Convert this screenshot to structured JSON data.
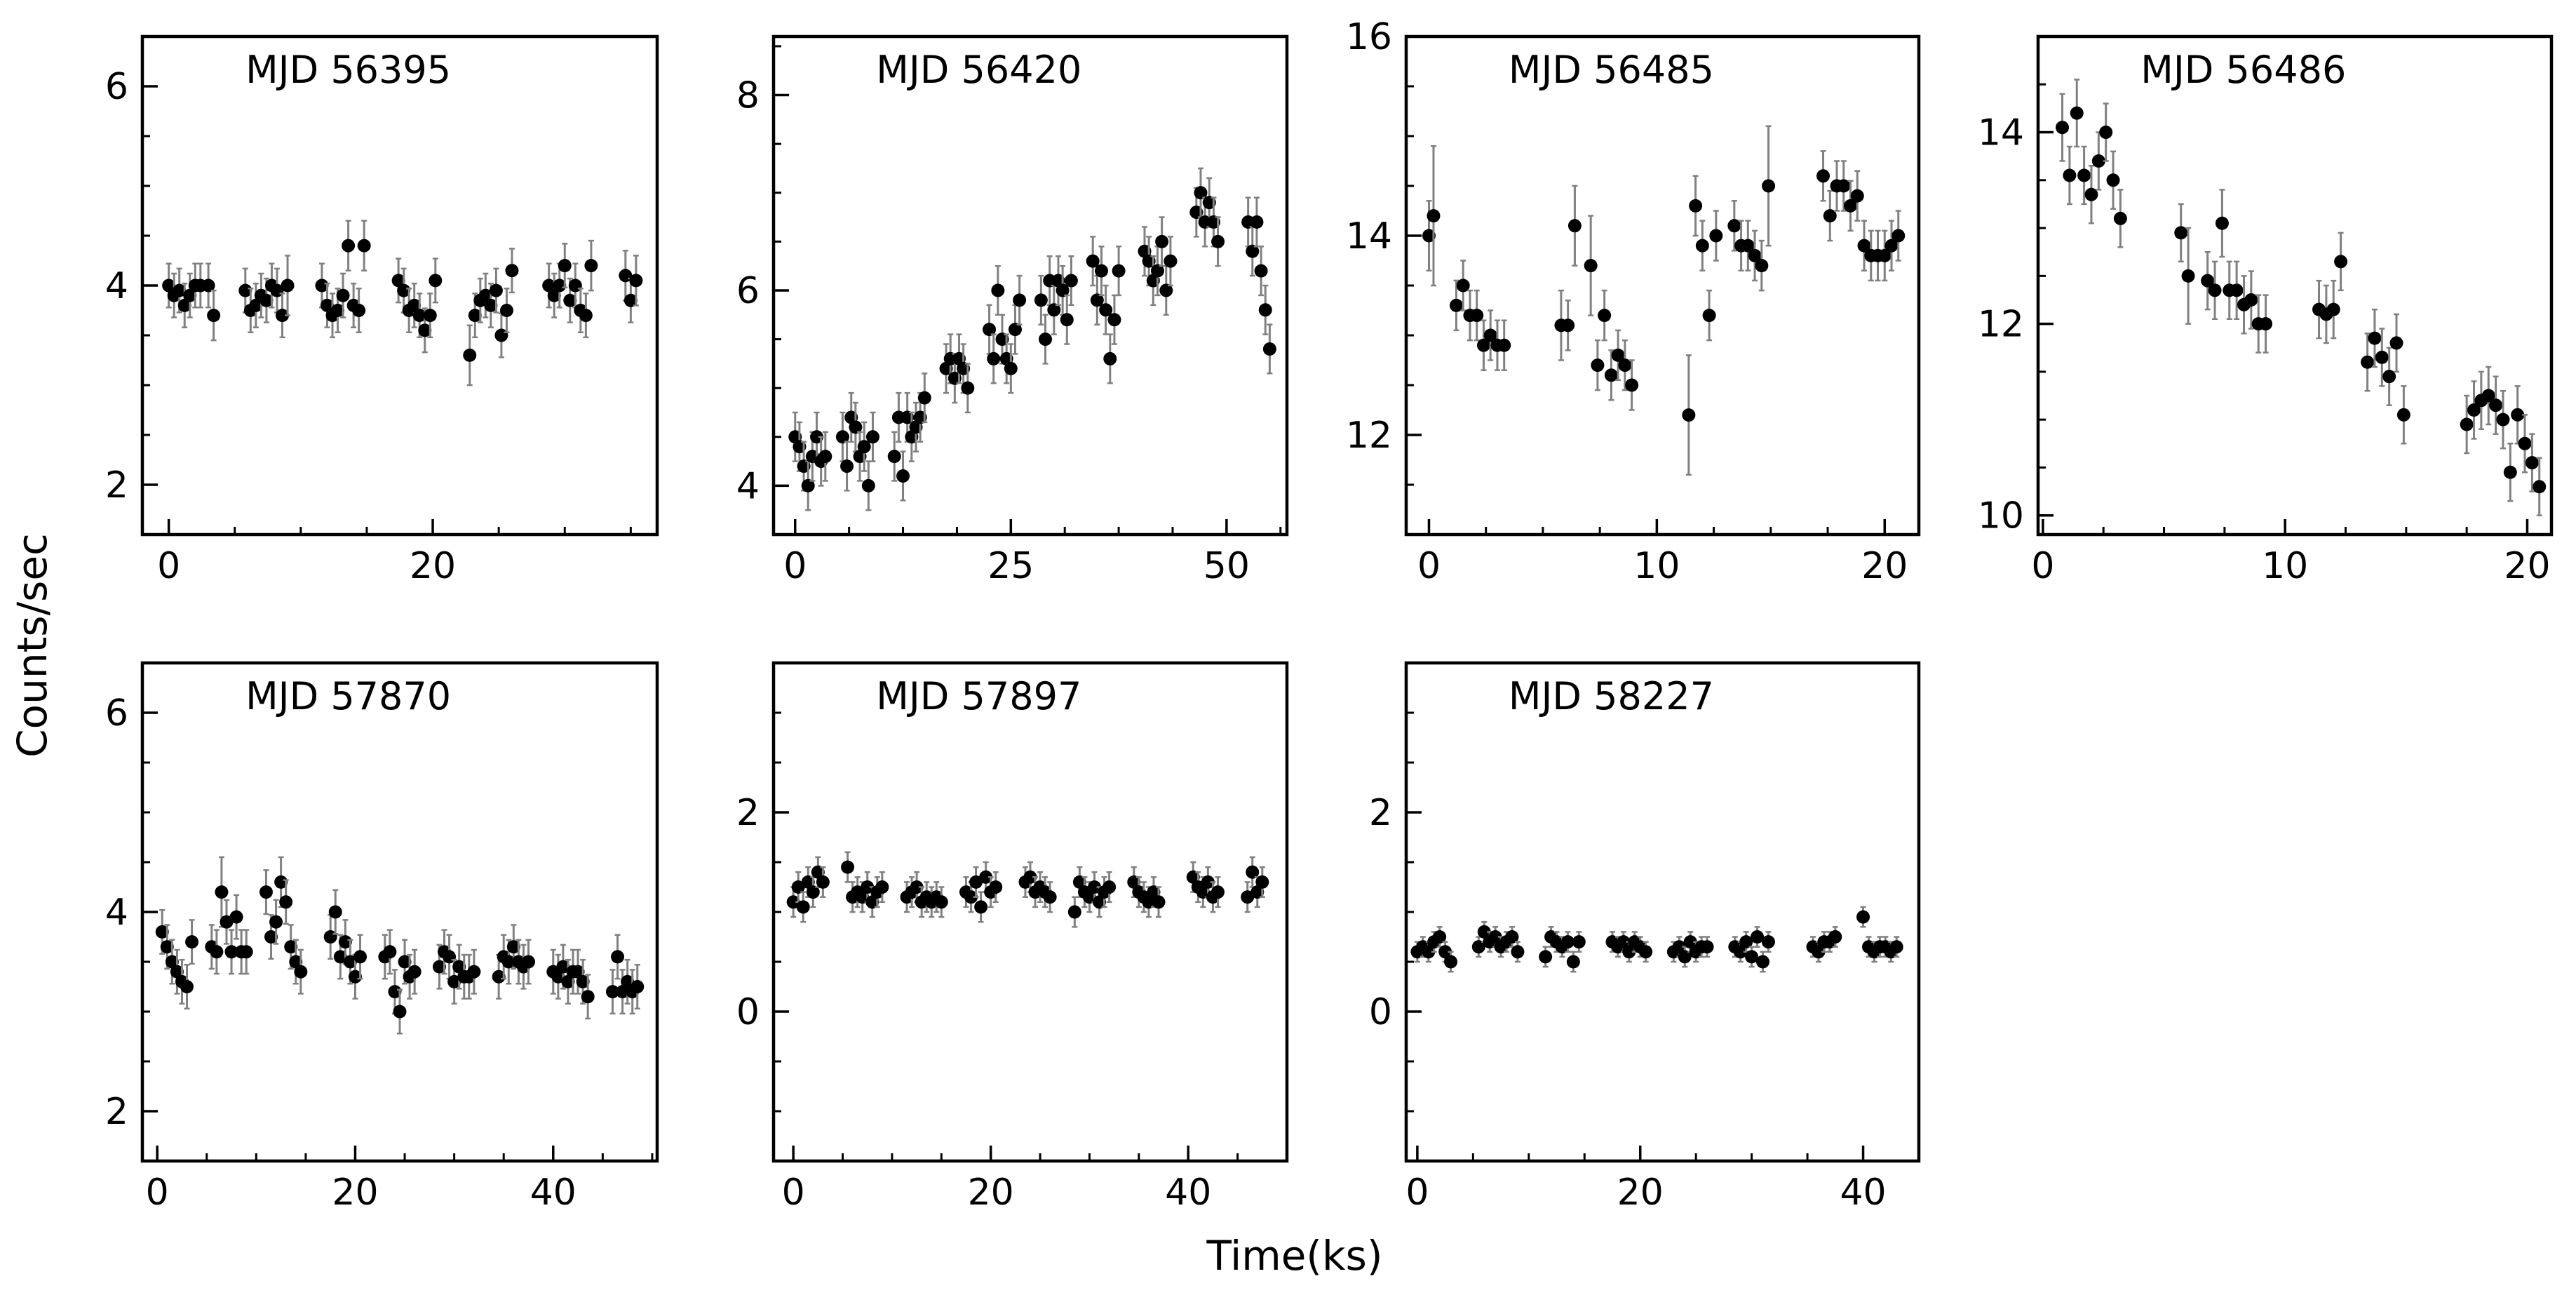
{
  "figure": {
    "xlabel": "Time(ks)",
    "ylabel": "Counts/sec",
    "marker_color": "#000000",
    "errorbar_color": "#808080"
  },
  "chart_data": [
    {
      "type": "scatter",
      "title": "MJD 56395",
      "xlim": [
        -2,
        37
      ],
      "ylim": [
        1.5,
        6.5
      ],
      "xticks": [
        0,
        20
      ],
      "yticks": [
        2,
        4,
        6
      ],
      "x": [
        0,
        0.4,
        0.8,
        1.2,
        1.6,
        2.0,
        2.4,
        3.0,
        3.4,
        5.8,
        6.2,
        6.6,
        7.0,
        7.4,
        7.8,
        8.2,
        8.6,
        9.0,
        11.6,
        12.0,
        12.4,
        12.8,
        13.2,
        13.6,
        14.0,
        14.4,
        14.8,
        17.4,
        17.8,
        18.2,
        18.6,
        19.0,
        19.4,
        19.8,
        20.2,
        22.8,
        23.2,
        23.6,
        24.0,
        24.4,
        24.8,
        25.2,
        25.6,
        26.0,
        28.8,
        29.2,
        29.6,
        30.0,
        30.4,
        30.8,
        31.2,
        31.6,
        32.0,
        34.6,
        35.0,
        35.4
      ],
      "y": [
        4.0,
        3.9,
        3.95,
        3.8,
        3.9,
        4.0,
        4.0,
        4.0,
        3.7,
        3.95,
        3.75,
        3.8,
        3.9,
        3.85,
        4.0,
        3.95,
        3.7,
        4.0,
        4.0,
        3.8,
        3.7,
        3.75,
        3.9,
        4.4,
        3.8,
        3.75,
        4.4,
        4.05,
        3.95,
        3.75,
        3.8,
        3.7,
        3.55,
        3.7,
        4.05,
        3.3,
        3.7,
        3.85,
        3.9,
        3.8,
        3.95,
        3.5,
        3.75,
        4.15,
        4.0,
        3.9,
        4.0,
        4.2,
        3.85,
        4.0,
        3.75,
        3.7,
        4.2,
        4.1,
        3.85,
        4.05
      ],
      "err": [
        0.22,
        0.22,
        0.22,
        0.22,
        0.22,
        0.22,
        0.22,
        0.22,
        0.25,
        0.22,
        0.22,
        0.22,
        0.22,
        0.22,
        0.22,
        0.22,
        0.22,
        0.3,
        0.22,
        0.22,
        0.22,
        0.22,
        0.22,
        0.25,
        0.22,
        0.22,
        0.25,
        0.22,
        0.22,
        0.22,
        0.22,
        0.22,
        0.22,
        0.22,
        0.22,
        0.3,
        0.22,
        0.22,
        0.22,
        0.22,
        0.22,
        0.22,
        0.22,
        0.22,
        0.22,
        0.22,
        0.22,
        0.22,
        0.22,
        0.22,
        0.22,
        0.22,
        0.25,
        0.25,
        0.22,
        0.25
      ]
    },
    {
      "type": "scatter",
      "title": "MJD 56420",
      "xlim": [
        -2.5,
        57
      ],
      "ylim": [
        3.5,
        8.6
      ],
      "xticks": [
        0,
        25,
        50
      ],
      "yticks": [
        4,
        6,
        8
      ],
      "x": [
        0,
        0.5,
        1.0,
        1.5,
        2.0,
        2.5,
        3.0,
        3.5,
        5.5,
        6.0,
        6.5,
        7.0,
        7.5,
        8.0,
        8.5,
        9.0,
        11.5,
        12.0,
        12.5,
        13.0,
        13.5,
        14.0,
        14.5,
        15.0,
        17.5,
        18.0,
        18.5,
        19.0,
        19.5,
        20.0,
        22.5,
        23.0,
        23.5,
        24.0,
        24.5,
        25.0,
        25.5,
        26.0,
        28.5,
        29.0,
        29.5,
        30.0,
        30.5,
        31.0,
        31.5,
        32.0,
        34.5,
        35.0,
        35.5,
        36.0,
        36.5,
        37.0,
        37.5,
        40.5,
        41.0,
        41.5,
        42.0,
        42.5,
        43.0,
        43.5,
        46.5,
        47.0,
        47.5,
        48.0,
        48.5,
        49.0,
        52.5,
        53.0,
        53.5,
        54.0,
        54.5,
        55.0
      ],
      "y": [
        4.5,
        4.4,
        4.2,
        4.0,
        4.3,
        4.5,
        4.25,
        4.3,
        4.5,
        4.2,
        4.7,
        4.6,
        4.3,
        4.4,
        4.0,
        4.5,
        4.3,
        4.7,
        4.1,
        4.7,
        4.5,
        4.6,
        4.7,
        4.9,
        5.2,
        5.3,
        5.1,
        5.3,
        5.2,
        5.0,
        5.6,
        5.3,
        6.0,
        5.5,
        5.3,
        5.2,
        5.6,
        5.9,
        5.9,
        5.5,
        6.1,
        5.8,
        6.1,
        6.0,
        5.7,
        6.1,
        6.3,
        5.9,
        6.2,
        5.8,
        5.3,
        5.7,
        6.2,
        6.4,
        6.3,
        6.1,
        6.2,
        6.5,
        6.0,
        6.3,
        6.8,
        7.0,
        6.7,
        6.9,
        6.7,
        6.5,
        6.7,
        6.4,
        6.7,
        6.2,
        5.8,
        5.4
      ],
      "err": [
        0.25,
        0.25,
        0.25,
        0.25,
        0.25,
        0.25,
        0.25,
        0.25,
        0.25,
        0.25,
        0.25,
        0.25,
        0.25,
        0.25,
        0.25,
        0.25,
        0.25,
        0.25,
        0.25,
        0.25,
        0.25,
        0.25,
        0.25,
        0.25,
        0.25,
        0.25,
        0.25,
        0.25,
        0.25,
        0.25,
        0.25,
        0.25,
        0.25,
        0.25,
        0.25,
        0.25,
        0.25,
        0.25,
        0.25,
        0.25,
        0.25,
        0.25,
        0.25,
        0.25,
        0.25,
        0.25,
        0.25,
        0.25,
        0.25,
        0.25,
        0.25,
        0.25,
        0.25,
        0.25,
        0.25,
        0.25,
        0.25,
        0.25,
        0.25,
        0.25,
        0.25,
        0.25,
        0.25,
        0.25,
        0.25,
        0.25,
        0.25,
        0.25,
        0.25,
        0.25,
        0.25,
        0.25
      ]
    },
    {
      "type": "scatter",
      "title": "MJD 56485",
      "xlim": [
        -1,
        21.5
      ],
      "ylim": [
        11,
        16
      ],
      "xticks": [
        0,
        10,
        20
      ],
      "yticks": [
        12,
        14,
        16
      ],
      "x": [
        0,
        0.2,
        1.2,
        1.5,
        1.8,
        2.1,
        2.4,
        2.7,
        3.0,
        3.3,
        5.8,
        6.1,
        6.4,
        7.1,
        7.4,
        7.7,
        8.0,
        8.3,
        8.6,
        8.9,
        11.4,
        11.7,
        12.0,
        12.3,
        12.6,
        13.4,
        13.7,
        14.0,
        14.3,
        14.6,
        14.9,
        17.3,
        17.6,
        17.9,
        18.2,
        18.5,
        18.8,
        19.1,
        19.4,
        19.7,
        20.0,
        20.3,
        20.6
      ],
      "y": [
        14.0,
        14.2,
        13.3,
        13.5,
        13.2,
        13.2,
        12.9,
        13.0,
        12.9,
        12.9,
        13.1,
        13.1,
        14.1,
        13.7,
        12.7,
        13.2,
        12.6,
        12.8,
        12.7,
        12.5,
        12.2,
        14.3,
        13.9,
        13.2,
        14.0,
        14.1,
        13.9,
        13.9,
        13.8,
        13.7,
        14.5,
        14.6,
        14.2,
        14.5,
        14.5,
        14.3,
        14.4,
        13.9,
        13.8,
        13.8,
        13.8,
        13.9,
        14.0
      ],
      "err": [
        0.35,
        0.7,
        0.25,
        0.25,
        0.25,
        0.25,
        0.25,
        0.25,
        0.25,
        0.25,
        0.35,
        0.25,
        0.4,
        0.5,
        0.25,
        0.25,
        0.25,
        0.25,
        0.25,
        0.25,
        0.6,
        0.3,
        0.25,
        0.25,
        0.25,
        0.25,
        0.25,
        0.25,
        0.25,
        0.25,
        0.6,
        0.25,
        0.25,
        0.25,
        0.25,
        0.25,
        0.25,
        0.25,
        0.25,
        0.25,
        0.25,
        0.25,
        0.25
      ]
    },
    {
      "type": "scatter",
      "title": "MJD 56486",
      "xlim": [
        -0.2,
        21
      ],
      "ylim": [
        9.8,
        15
      ],
      "xticks": [
        0,
        10,
        20
      ],
      "yticks": [
        10,
        12,
        14
      ],
      "x": [
        0.8,
        1.1,
        1.4,
        1.7,
        2.0,
        2.3,
        2.6,
        2.9,
        3.2,
        5.7,
        6.0,
        6.8,
        7.1,
        7.4,
        7.7,
        8.0,
        8.3,
        8.6,
        8.9,
        9.2,
        11.4,
        11.7,
        12.0,
        12.3,
        13.4,
        13.7,
        14.0,
        14.3,
        14.6,
        14.9,
        17.5,
        17.8,
        18.1,
        18.4,
        18.7,
        19.0,
        19.3,
        19.6,
        19.9,
        20.2,
        20.5
      ],
      "y": [
        14.05,
        13.55,
        14.2,
        13.55,
        13.35,
        13.7,
        14.0,
        13.5,
        13.1,
        12.95,
        12.5,
        12.45,
        12.35,
        13.05,
        12.35,
        12.35,
        12.2,
        12.25,
        12.0,
        12.0,
        12.15,
        12.1,
        12.15,
        12.65,
        11.6,
        11.85,
        11.65,
        11.45,
        11.8,
        11.05,
        10.95,
        11.1,
        11.2,
        11.25,
        11.15,
        11.0,
        10.45,
        11.05,
        10.75,
        10.55,
        10.3
      ],
      "err": [
        0.35,
        0.3,
        0.35,
        0.3,
        0.3,
        0.3,
        0.3,
        0.3,
        0.3,
        0.3,
        0.5,
        0.3,
        0.3,
        0.35,
        0.3,
        0.3,
        0.3,
        0.3,
        0.3,
        0.3,
        0.3,
        0.3,
        0.3,
        0.3,
        0.3,
        0.3,
        0.3,
        0.3,
        0.3,
        0.3,
        0.3,
        0.3,
        0.3,
        0.3,
        0.3,
        0.3,
        0.3,
        0.3,
        0.3,
        0.3,
        0.3
      ]
    },
    {
      "type": "scatter",
      "title": "MJD 57870",
      "xlim": [
        -1.5,
        50.5
      ],
      "ylim": [
        1.5,
        6.5
      ],
      "xticks": [
        0,
        20,
        40
      ],
      "yticks": [
        2,
        4,
        6
      ],
      "x": [
        0.5,
        1.0,
        1.5,
        2.0,
        2.5,
        3.0,
        3.5,
        5.5,
        6.0,
        6.5,
        7.0,
        7.5,
        8.0,
        8.5,
        9.0,
        11.0,
        11.5,
        12.0,
        12.5,
        13.0,
        13.5,
        14.0,
        14.5,
        17.5,
        18.0,
        18.5,
        19.0,
        19.5,
        20.0,
        20.5,
        23.0,
        23.5,
        24.0,
        24.5,
        25.0,
        25.5,
        26.0,
        28.5,
        29.0,
        29.5,
        30.0,
        30.5,
        31.0,
        31.5,
        32.0,
        34.5,
        35.0,
        35.5,
        36.0,
        36.5,
        37.0,
        37.5,
        40.0,
        40.5,
        41.0,
        41.5,
        42.0,
        42.5,
        43.0,
        43.5,
        46.0,
        46.5,
        47.0,
        47.5,
        48.0,
        48.5
      ],
      "y": [
        3.8,
        3.65,
        3.5,
        3.4,
        3.3,
        3.25,
        3.7,
        3.65,
        3.6,
        4.2,
        3.9,
        3.6,
        3.95,
        3.6,
        3.6,
        4.2,
        3.75,
        3.9,
        4.3,
        4.1,
        3.65,
        3.5,
        3.4,
        3.75,
        4.0,
        3.55,
        3.7,
        3.5,
        3.35,
        3.55,
        3.55,
        3.6,
        3.2,
        3.0,
        3.5,
        3.35,
        3.4,
        3.45,
        3.6,
        3.55,
        3.3,
        3.45,
        3.35,
        3.35,
        3.4,
        3.35,
        3.55,
        3.5,
        3.65,
        3.5,
        3.45,
        3.5,
        3.4,
        3.35,
        3.45,
        3.3,
        3.4,
        3.4,
        3.3,
        3.15,
        3.2,
        3.55,
        3.2,
        3.3,
        3.2,
        3.25
      ],
      "err": [
        0.22,
        0.22,
        0.22,
        0.22,
        0.22,
        0.22,
        0.22,
        0.22,
        0.22,
        0.35,
        0.22,
        0.22,
        0.22,
        0.22,
        0.22,
        0.22,
        0.22,
        0.22,
        0.25,
        0.22,
        0.22,
        0.22,
        0.22,
        0.22,
        0.22,
        0.22,
        0.22,
        0.22,
        0.22,
        0.22,
        0.22,
        0.22,
        0.22,
        0.22,
        0.22,
        0.22,
        0.22,
        0.22,
        0.22,
        0.22,
        0.22,
        0.22,
        0.22,
        0.22,
        0.22,
        0.22,
        0.22,
        0.22,
        0.22,
        0.22,
        0.22,
        0.22,
        0.22,
        0.22,
        0.22,
        0.22,
        0.22,
        0.22,
        0.22,
        0.22,
        0.22,
        0.22,
        0.22,
        0.22,
        0.22,
        0.22
      ]
    },
    {
      "type": "scatter",
      "title": "MJD 57897",
      "xlim": [
        -2,
        50
      ],
      "ylim": [
        -1.5,
        3.5
      ],
      "xticks": [
        0,
        20,
        40
      ],
      "yticks": [
        0,
        2
      ],
      "x": [
        0,
        0.5,
        1.0,
        1.5,
        2.0,
        2.5,
        3.0,
        5.5,
        6.0,
        6.5,
        7.0,
        7.5,
        8.0,
        8.5,
        9.0,
        11.5,
        12.0,
        12.5,
        13.0,
        13.5,
        14.0,
        14.5,
        15.0,
        17.5,
        18.0,
        18.5,
        19.0,
        19.5,
        20.0,
        20.5,
        23.5,
        24.0,
        24.5,
        25.0,
        25.5,
        26.0,
        28.5,
        29.0,
        29.5,
        30.0,
        30.5,
        31.0,
        31.5,
        32.0,
        34.5,
        35.0,
        35.5,
        36.0,
        36.5,
        37.0,
        40.5,
        41.0,
        41.5,
        42.0,
        42.5,
        43.0,
        46.0,
        46.5,
        47.0,
        47.5
      ],
      "y": [
        1.1,
        1.25,
        1.05,
        1.3,
        1.2,
        1.4,
        1.3,
        1.45,
        1.15,
        1.2,
        1.15,
        1.25,
        1.1,
        1.2,
        1.25,
        1.15,
        1.2,
        1.25,
        1.1,
        1.15,
        1.1,
        1.15,
        1.1,
        1.2,
        1.15,
        1.3,
        1.05,
        1.35,
        1.2,
        1.25,
        1.3,
        1.35,
        1.2,
        1.25,
        1.2,
        1.15,
        1.0,
        1.3,
        1.2,
        1.15,
        1.25,
        1.1,
        1.2,
        1.25,
        1.3,
        1.2,
        1.15,
        1.1,
        1.2,
        1.1,
        1.35,
        1.25,
        1.2,
        1.3,
        1.15,
        1.2,
        1.15,
        1.4,
        1.2,
        1.3
      ],
      "err": [
        0.15,
        0.15,
        0.15,
        0.15,
        0.15,
        0.15,
        0.15,
        0.15,
        0.15,
        0.15,
        0.15,
        0.15,
        0.15,
        0.15,
        0.15,
        0.15,
        0.15,
        0.15,
        0.15,
        0.15,
        0.15,
        0.15,
        0.15,
        0.15,
        0.15,
        0.15,
        0.15,
        0.15,
        0.15,
        0.15,
        0.15,
        0.15,
        0.15,
        0.15,
        0.15,
        0.15,
        0.15,
        0.15,
        0.15,
        0.15,
        0.15,
        0.15,
        0.15,
        0.15,
        0.15,
        0.15,
        0.15,
        0.15,
        0.15,
        0.15,
        0.15,
        0.15,
        0.15,
        0.15,
        0.15,
        0.15,
        0.15,
        0.15,
        0.15,
        0.15
      ]
    },
    {
      "type": "scatter",
      "title": "MJD 58227",
      "xlim": [
        -1,
        45
      ],
      "ylim": [
        -1.5,
        3.5
      ],
      "xticks": [
        0,
        20,
        40
      ],
      "yticks": [
        0,
        2
      ],
      "x": [
        0,
        0.5,
        1.0,
        1.5,
        2.0,
        2.5,
        3.0,
        5.5,
        6.0,
        6.5,
        7.0,
        7.5,
        8.0,
        8.5,
        9.0,
        11.5,
        12.0,
        12.5,
        13.0,
        13.5,
        14.0,
        14.5,
        17.5,
        18.0,
        18.5,
        19.0,
        19.5,
        20.0,
        20.5,
        23.0,
        23.5,
        24.0,
        24.5,
        25.0,
        25.5,
        26.0,
        28.5,
        29.0,
        29.5,
        30.0,
        30.5,
        31.0,
        31.5,
        35.5,
        36.0,
        36.5,
        37.0,
        37.5,
        40.0,
        40.5,
        41.0,
        41.5,
        42.0,
        42.5,
        43.0
      ],
      "y": [
        0.6,
        0.65,
        0.6,
        0.7,
        0.75,
        0.6,
        0.5,
        0.65,
        0.8,
        0.7,
        0.75,
        0.65,
        0.7,
        0.75,
        0.6,
        0.55,
        0.75,
        0.7,
        0.65,
        0.7,
        0.5,
        0.7,
        0.7,
        0.65,
        0.7,
        0.6,
        0.7,
        0.65,
        0.6,
        0.6,
        0.65,
        0.55,
        0.7,
        0.6,
        0.65,
        0.65,
        0.65,
        0.6,
        0.7,
        0.55,
        0.75,
        0.5,
        0.7,
        0.65,
        0.6,
        0.7,
        0.7,
        0.75,
        0.95,
        0.65,
        0.6,
        0.65,
        0.65,
        0.6,
        0.65
      ],
      "err": [
        0.1,
        0.1,
        0.1,
        0.1,
        0.1,
        0.1,
        0.1,
        0.1,
        0.1,
        0.1,
        0.1,
        0.1,
        0.1,
        0.1,
        0.1,
        0.1,
        0.1,
        0.1,
        0.1,
        0.1,
        0.1,
        0.1,
        0.1,
        0.1,
        0.1,
        0.1,
        0.1,
        0.1,
        0.1,
        0.1,
        0.1,
        0.1,
        0.1,
        0.1,
        0.1,
        0.1,
        0.1,
        0.1,
        0.1,
        0.1,
        0.1,
        0.1,
        0.1,
        0.1,
        0.1,
        0.1,
        0.1,
        0.1,
        0.1,
        0.1,
        0.1,
        0.1,
        0.1,
        0.1,
        0.1
      ]
    }
  ]
}
